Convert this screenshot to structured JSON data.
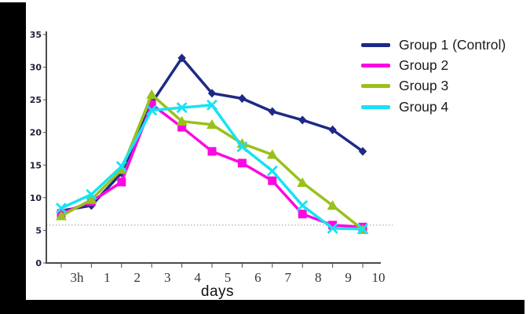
{
  "frame": {
    "background": "#ffffff",
    "left_bar_color": "#000000",
    "bottom_bar_color": "#000000"
  },
  "chart_data": {
    "type": "line",
    "title": "",
    "xlabel": "days",
    "ylabel": "",
    "categories": [
      "3h",
      "1",
      "2",
      "3",
      "4",
      "5",
      "6",
      "7",
      "8",
      "9",
      "10"
    ],
    "ylim": [
      0,
      35
    ],
    "yticks": [
      0,
      5,
      10,
      15,
      20,
      25,
      30,
      35
    ],
    "grid": false,
    "legend_position": "right-top",
    "reference_line": {
      "value": 5.8,
      "style": "dotted",
      "color": "#9a9a9a"
    },
    "axis_color": "#4a4a4a",
    "y_label_color": "#20203a",
    "x_label_color": "#33333d",
    "series": [
      {
        "name": "Group 1 (Control)",
        "color": "#1e2a85",
        "marker": "diamond",
        "values": [
          8.0,
          8.8,
          13.8,
          24.5,
          31.4,
          26.0,
          25.2,
          23.2,
          21.9,
          20.4,
          17.1
        ]
      },
      {
        "name": "Group 2",
        "color": "#fa0ae0",
        "marker": "square",
        "values": [
          7.6,
          9.4,
          12.4,
          24.3,
          20.8,
          17.1,
          15.3,
          12.6,
          7.5,
          5.8,
          5.5
        ]
      },
      {
        "name": "Group 3",
        "color": "#99c11a",
        "marker": "triangle",
        "values": [
          7.2,
          9.7,
          14.3,
          25.8,
          21.7,
          21.2,
          18.3,
          16.6,
          12.3,
          8.8,
          5.1
        ]
      },
      {
        "name": "Group 4",
        "color": "#17e2f3",
        "marker": "x",
        "values": [
          8.4,
          10.5,
          14.8,
          23.4,
          23.8,
          24.2,
          17.8,
          14.1,
          8.8,
          5.3,
          5.2
        ]
      }
    ]
  }
}
